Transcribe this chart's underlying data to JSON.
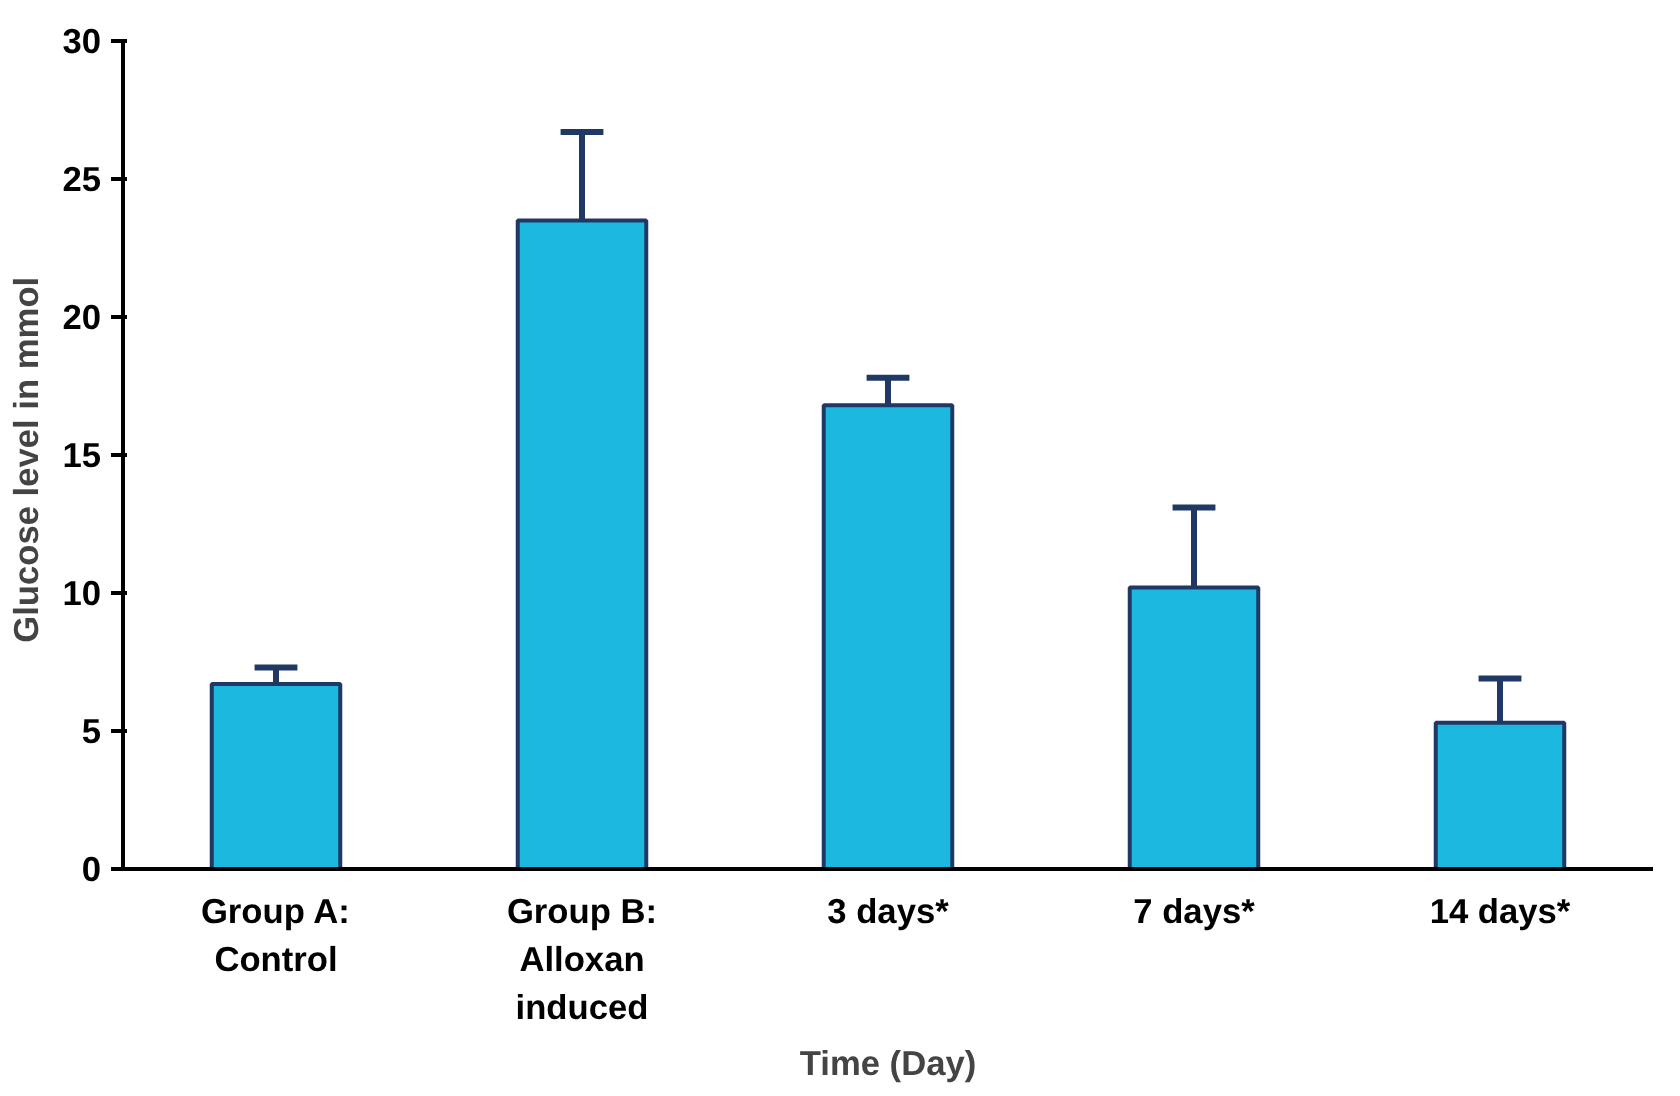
{
  "chart_data": {
    "type": "bar",
    "xlabel": "Time (Day)",
    "ylabel": "Glucose  level in mmol",
    "categories": [
      "Group A:\nControl",
      "Group B:\nAlloxan\ninduced",
      "3 days*",
      "7 days*",
      "14 days*"
    ],
    "values": [
      6.7,
      23.5,
      16.8,
      10.2,
      5.3
    ],
    "errors": [
      [
        6.7,
        7.3
      ],
      [
        23.5,
        26.7
      ],
      [
        16.8,
        17.8
      ],
      [
        10.2,
        13.1
      ],
      [
        5.3,
        6.9
      ]
    ],
    "color": "#1cb8e0",
    "ylim": [
      0,
      30
    ],
    "yticks": [
      0,
      5,
      10,
      15,
      20,
      25,
      30
    ],
    "grid": false
  }
}
